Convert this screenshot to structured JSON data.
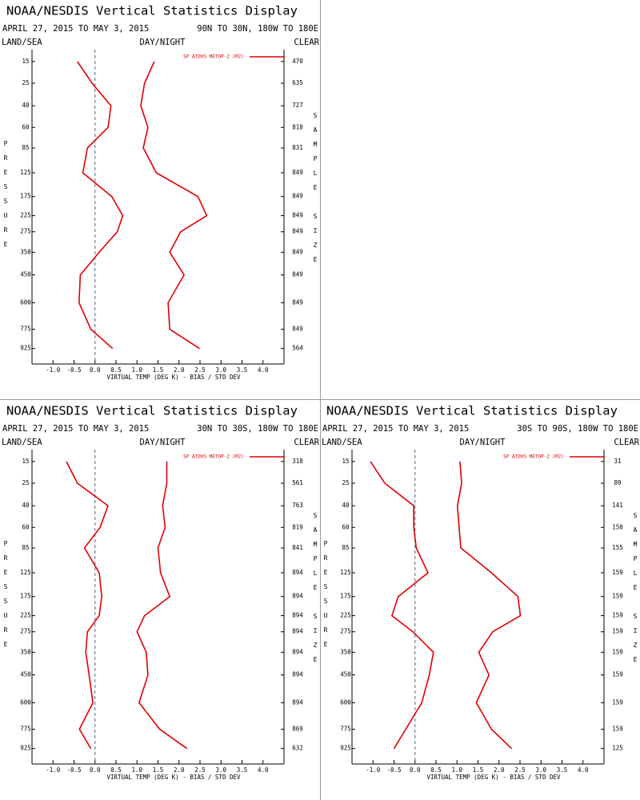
{
  "chart_data": [
    {
      "type": "line",
      "title": "NOAA/NESDIS Vertical Statistics Display",
      "subtitle": "APRIL 27, 2015 TO MAY 3, 2015",
      "region": "90N TO 30N, 180W TO 180E",
      "land_sea": "LAND/SEA",
      "day_night": "DAY/NIGHT",
      "clear": "CLEAR",
      "y_label": "PRESSURE",
      "y2_label": "SAMPLE SIZE",
      "x_label": "VIRTUAL TEMP (DEG K) - BIAS / STD DEV",
      "legend_label": "SP ATOVS METOP-2 (M2)",
      "y": [
        15,
        25,
        40,
        60,
        85,
        125,
        175,
        225,
        275,
        350,
        450,
        600,
        775,
        925
      ],
      "yticks": [
        15,
        25,
        40,
        60,
        85,
        125,
        175,
        225,
        275,
        350,
        450,
        600,
        775,
        925
      ],
      "ylim": [
        1060,
        11
      ],
      "yscale": "power",
      "yexponent": 0.25,
      "sample_size": [
        470,
        635,
        727,
        818,
        831,
        849,
        849,
        849,
        849,
        849,
        849,
        849,
        849,
        564
      ],
      "xlim": [
        -1.5,
        4.5
      ],
      "xticks": [
        {
          "value": -1,
          "label": "-1.0"
        },
        {
          "value": -0.5,
          "label": "-0.5"
        },
        {
          "value": 0,
          "label": "0.0"
        },
        {
          "value": 0.5,
          "label": "0.5"
        },
        {
          "value": 1,
          "label": "1.0"
        },
        {
          "value": 1.5,
          "label": "1.5"
        },
        {
          "value": 2,
          "label": "2.0"
        },
        {
          "value": 2.5,
          "label": "2.5"
        },
        {
          "value": 3,
          "label": "3.0"
        },
        {
          "value": 3.5,
          "label": "3.5"
        },
        {
          "value": 4,
          "label": "4.0"
        }
      ],
      "series": [
        {
          "color": "#e00000",
          "values": [
            -0.42,
            -0.07,
            0.38,
            0.31,
            -0.18,
            -0.29,
            0.4,
            0.66,
            0.53,
            0.1,
            -0.35,
            -0.38,
            -0.1,
            0.42
          ]
        },
        {
          "color": "#e00000",
          "values": [
            1.41,
            1.18,
            1.09,
            1.26,
            1.15,
            1.46,
            2.45,
            2.66,
            2.04,
            1.78,
            2.12,
            1.74,
            1.78,
            2.49
          ]
        }
      ]
    },
    {
      "type": "line",
      "title": "NOAA/NESDIS Vertical Statistics Display",
      "subtitle": "APRIL 27, 2015 TO MAY 3, 2015",
      "region": "30N TO 30S, 180W TO 180E",
      "land_sea": "LAND/SEA",
      "day_night": "DAY/NIGHT",
      "clear": "CLEAR",
      "y_label": "PRESSURE",
      "y2_label": "SAMPLE SIZE",
      "x_label": "VIRTUAL TEMP (DEG K) - BIAS / STD DEV",
      "legend_label": "SP ATOVS METOP-2 (M2)",
      "y": [
        15,
        25,
        40,
        60,
        85,
        125,
        175,
        225,
        275,
        350,
        450,
        600,
        775,
        925
      ],
      "yticks": [
        15,
        25,
        40,
        60,
        85,
        125,
        175,
        225,
        275,
        350,
        450,
        600,
        775,
        925
      ],
      "ylim": [
        1060,
        11
      ],
      "yscale": "power",
      "yexponent": 0.25,
      "sample_size": [
        318,
        561,
        763,
        819,
        841,
        894,
        894,
        894,
        894,
        894,
        894,
        894,
        869,
        632
      ],
      "xlim": [
        -1.5,
        4.5
      ],
      "xticks": [
        {
          "value": -1,
          "label": "-1.0"
        },
        {
          "value": -0.5,
          "label": "-0.5"
        },
        {
          "value": 0,
          "label": "0.0"
        },
        {
          "value": 0.5,
          "label": "0.5"
        },
        {
          "value": 1,
          "label": "1.0"
        },
        {
          "value": 1.5,
          "label": "1.5"
        },
        {
          "value": 2,
          "label": "2.0"
        },
        {
          "value": 2.5,
          "label": "2.5"
        },
        {
          "value": 3,
          "label": "3.0"
        },
        {
          "value": 3.5,
          "label": "3.5"
        },
        {
          "value": 4,
          "label": "4.0"
        }
      ],
      "series": [
        {
          "color": "#e00000",
          "values": [
            -0.68,
            -0.42,
            0.31,
            0.12,
            -0.25,
            0.1,
            0.16,
            0.1,
            -0.18,
            -0.22,
            -0.14,
            -0.05,
            -0.37,
            -0.1
          ]
        },
        {
          "color": "#e00000",
          "values": [
            1.71,
            1.71,
            1.61,
            1.67,
            1.5,
            1.56,
            1.78,
            1.18,
            1.0,
            1.22,
            1.26,
            1.05,
            1.54,
            2.19
          ]
        }
      ]
    },
    {
      "type": "line",
      "title": "NOAA/NESDIS Vertical Statistics Display",
      "subtitle": "APRIL 27, 2015 TO MAY 3, 2015",
      "region": "30S TO 90S, 180W TO 180E",
      "land_sea": "LAND/SEA",
      "day_night": "DAY/NIGHT",
      "clear": "CLEAR",
      "y_label": "PRESSURE",
      "y2_label": "SAMPLE SIZE",
      "x_label": "VIRTUAL TEMP (DEG K) - BIAS / STD DEV",
      "legend_label": "SP ATOVS METOP-2 (M2)",
      "y": [
        15,
        25,
        40,
        60,
        85,
        125,
        175,
        225,
        275,
        350,
        450,
        600,
        775,
        925
      ],
      "yticks": [
        15,
        25,
        40,
        60,
        85,
        125,
        175,
        225,
        275,
        350,
        450,
        600,
        775,
        925
      ],
      "ylim": [
        1060,
        11
      ],
      "yscale": "power",
      "yexponent": 0.25,
      "sample_size": [
        31,
        89,
        141,
        150,
        155,
        159,
        159,
        159,
        159,
        159,
        159,
        159,
        159,
        125
      ],
      "xlim": [
        -1.5,
        4.5
      ],
      "xticks": [
        {
          "value": -1,
          "label": "-1.0"
        },
        {
          "value": -0.5,
          "label": "-0.5"
        },
        {
          "value": 0,
          "label": "0.0"
        },
        {
          "value": 0.5,
          "label": "0.5"
        },
        {
          "value": 1,
          "label": "1.0"
        },
        {
          "value": 1.5,
          "label": "1.5"
        },
        {
          "value": 2,
          "label": "2.0"
        },
        {
          "value": 2.5,
          "label": "2.5"
        },
        {
          "value": 3,
          "label": "3.0"
        },
        {
          "value": 3.5,
          "label": "3.5"
        },
        {
          "value": 4,
          "label": "4.0"
        }
      ],
      "series": [
        {
          "color": "#e00000",
          "values": [
            -1.06,
            -0.72,
            -0.03,
            -0.03,
            0.03,
            0.31,
            -0.4,
            -0.55,
            -0.05,
            0.44,
            0.34,
            0.16,
            -0.22,
            -0.5
          ]
        },
        {
          "color": "#e00000",
          "values": [
            1.07,
            1.11,
            1.01,
            1.05,
            1.09,
            1.82,
            2.45,
            2.51,
            1.85,
            1.52,
            1.76,
            1.46,
            1.82,
            2.3
          ]
        }
      ]
    }
  ]
}
